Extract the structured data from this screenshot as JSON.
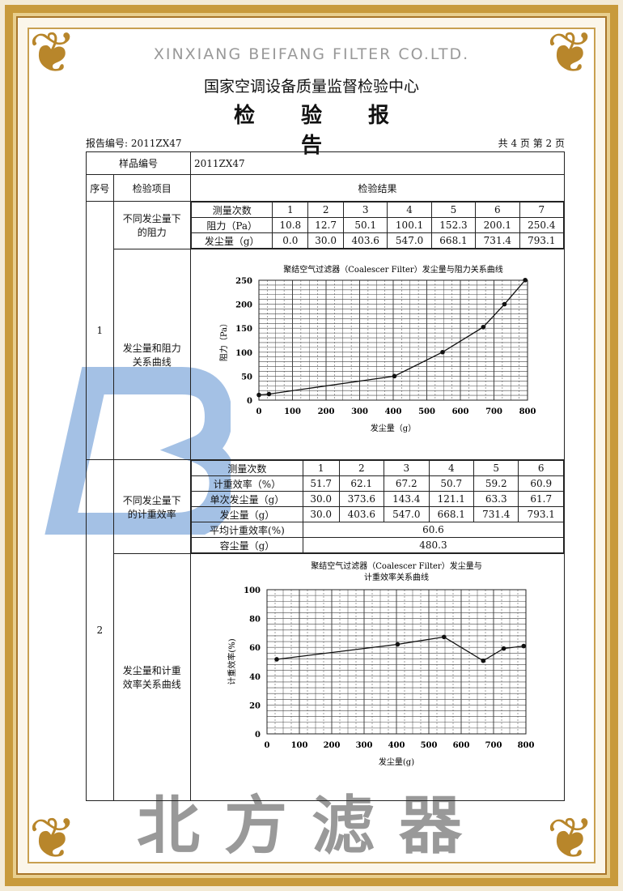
{
  "header": {
    "org": "国家空调设备质量监督检验中心",
    "title": "检 验 报 告",
    "report_no": "报告编号: 2011ZX47",
    "page_info": "共 4 页 第 2 页"
  },
  "table": {
    "sample_label": "样品编号",
    "sample_value": "2011ZX47",
    "col_seq": "序号",
    "col_item": "检验项目",
    "col_result": "检验结果",
    "sec1": {
      "seq": "1",
      "item1": "不同发尘量下的阻力",
      "item2": "发尘量和阻力关系曲线",
      "row_labels": [
        "测量次数",
        "阻力（Pa）",
        "发尘量（g）"
      ],
      "counts": [
        "1",
        "2",
        "3",
        "4",
        "5",
        "6",
        "7"
      ],
      "resistance": [
        "10.8",
        "12.7",
        "50.1",
        "100.1",
        "152.3",
        "200.1",
        "250.4"
      ],
      "dust": [
        "0.0",
        "30.0",
        "403.6",
        "547.0",
        "668.1",
        "731.4",
        "793.1"
      ]
    },
    "sec2": {
      "seq": "2",
      "item1": "不同发尘量下的计重效率",
      "item2": "发尘量和计重效率关系曲线",
      "row_labels": [
        "测量次数",
        "计重效率（%）",
        "单次发尘量（g）",
        "发尘量（g）"
      ],
      "counts": [
        "1",
        "2",
        "3",
        "4",
        "5",
        "6"
      ],
      "efficiency": [
        "51.7",
        "62.1",
        "67.2",
        "50.7",
        "59.2",
        "60.9"
      ],
      "single_dust": [
        "30.0",
        "373.6",
        "143.4",
        "121.1",
        "63.3",
        "61.7"
      ],
      "dust": [
        "30.0",
        "403.6",
        "547.0",
        "668.1",
        "731.4",
        "793.1"
      ],
      "avg_label": "平均计重效率(%)",
      "avg_value": "60.6",
      "capacity_label": "容尘量（g）",
      "capacity_value": "480.3"
    }
  },
  "watermark": {
    "brand_cn": "北方滤器",
    "brand_en": "XINXIANG BEIFANG FILTER CO.LTD.",
    "logo_color": "#6f9bd1"
  },
  "chart_data": [
    {
      "type": "line",
      "title": "聚结空气过滤器（Coalescer Filter）发尘量与阻力关系曲线",
      "xlabel": "发尘量（g）",
      "ylabel": "阻力（Pa）",
      "xlim": [
        0,
        800
      ],
      "ylim": [
        0,
        250
      ],
      "xticks": [
        0,
        100,
        200,
        300,
        400,
        500,
        600,
        700,
        800
      ],
      "yticks": [
        0,
        50,
        100,
        150,
        200,
        250
      ],
      "grid": true,
      "x": [
        0,
        30,
        403.6,
        547,
        668.1,
        731.4,
        793.1
      ],
      "y": [
        10.8,
        12.7,
        50.1,
        100.1,
        152.3,
        200.1,
        250.4
      ]
    },
    {
      "type": "line",
      "title": "聚结空气过滤器（Coalescer Filter）发尘量与",
      "title2": "计重效率关系曲线",
      "xlabel": "发尘量(g)",
      "ylabel": "计重效率(%)",
      "xlim": [
        0,
        800
      ],
      "ylim": [
        0,
        100
      ],
      "xticks": [
        0,
        100,
        200,
        300,
        400,
        500,
        600,
        700,
        800
      ],
      "yticks": [
        0,
        20,
        40,
        60,
        80,
        100
      ],
      "grid": true,
      "x": [
        30,
        403.6,
        547,
        668.1,
        731.4,
        793.1
      ],
      "y": [
        51.7,
        62.1,
        67.2,
        50.7,
        59.2,
        60.9
      ]
    }
  ]
}
